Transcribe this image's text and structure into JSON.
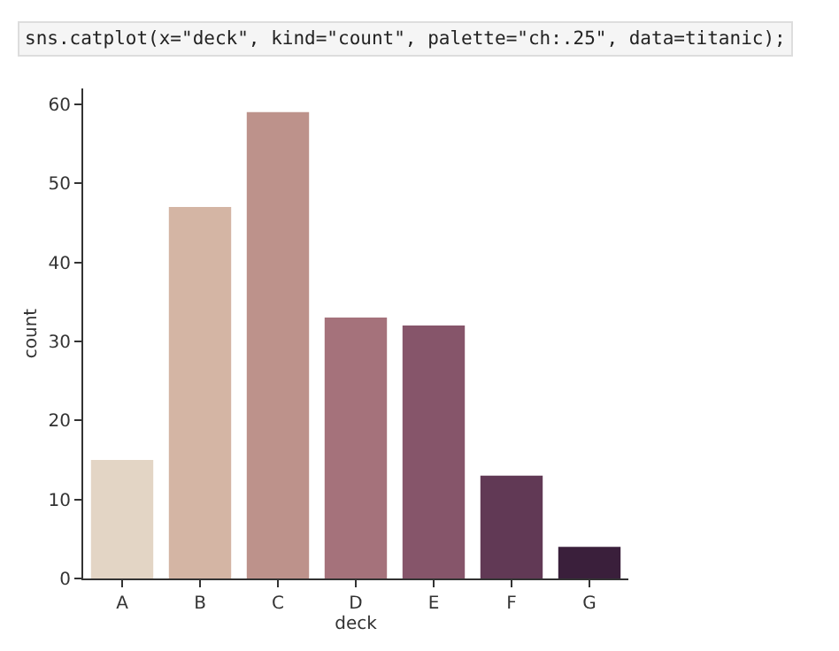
{
  "chart_data": {
    "type": "bar",
    "annotations": [
      "sns.catplot(x=\"deck\", kind=\"count\", palette=\"ch:.25\", data=titanic);"
    ],
    "xlabel": "deck",
    "ylabel": "count",
    "categories": [
      "A",
      "B",
      "C",
      "D",
      "E",
      "F",
      "G"
    ],
    "values": [
      15,
      47,
      59,
      33,
      32,
      13,
      4
    ],
    "colors": [
      "#e3d5c5",
      "#d4b5a4",
      "#bd928b",
      "#a5727b",
      "#86556a",
      "#613955",
      "#3a1f3b"
    ],
    "ylim": [
      0,
      62
    ],
    "yticks": [
      0,
      10,
      20,
      30,
      40,
      50,
      60
    ]
  }
}
